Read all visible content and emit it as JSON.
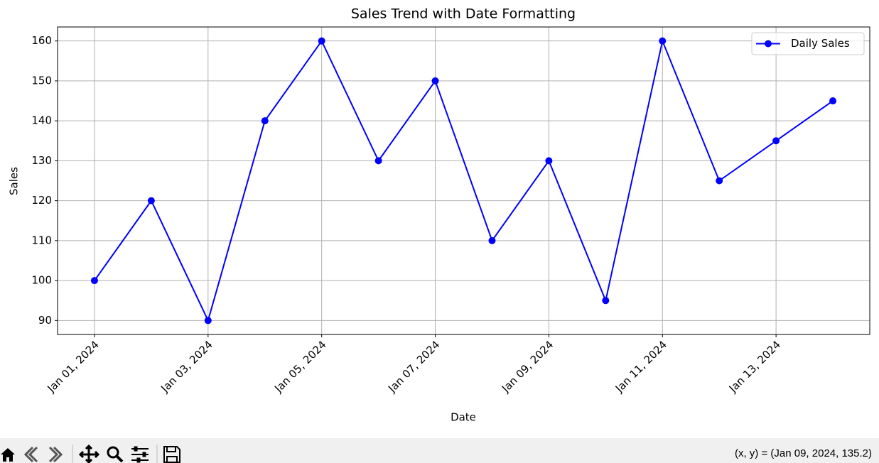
{
  "chart_data": {
    "type": "line",
    "title": "Sales Trend with Date Formatting",
    "xlabel": "Date",
    "ylabel": "Sales",
    "x": [
      "2024-01-01",
      "2024-01-02",
      "2024-01-03",
      "2024-01-04",
      "2024-01-05",
      "2024-01-06",
      "2024-01-07",
      "2024-01-08",
      "2024-01-09",
      "2024-01-10",
      "2024-01-11",
      "2024-01-12",
      "2024-01-13",
      "2024-01-14"
    ],
    "series": [
      {
        "name": "Daily Sales",
        "color": "#0000ff",
        "values": [
          100,
          120,
          90,
          140,
          160,
          130,
          150,
          110,
          130,
          95,
          160,
          125,
          135,
          145
        ]
      }
    ],
    "xlim": [
      "2023-12-31T08:24",
      "2024-01-14T15:36"
    ],
    "xticks": [
      {
        "value": "2024-01-01",
        "label": "Jan 01, 2024"
      },
      {
        "value": "2024-01-03",
        "label": "Jan 03, 2024"
      },
      {
        "value": "2024-01-05",
        "label": "Jan 05, 2024"
      },
      {
        "value": "2024-01-07",
        "label": "Jan 07, 2024"
      },
      {
        "value": "2024-01-09",
        "label": "Jan 09, 2024"
      },
      {
        "value": "2024-01-11",
        "label": "Jan 11, 2024"
      },
      {
        "value": "2024-01-13",
        "label": "Jan 13, 2024"
      }
    ],
    "ylim": [
      86.5,
      163.5
    ],
    "yticks": [
      90,
      100,
      110,
      120,
      130,
      140,
      150,
      160
    ],
    "grid": true,
    "legend": "upper right"
  },
  "status_text": "(x, y) = (Jan 09, 2024, 135.2)"
}
